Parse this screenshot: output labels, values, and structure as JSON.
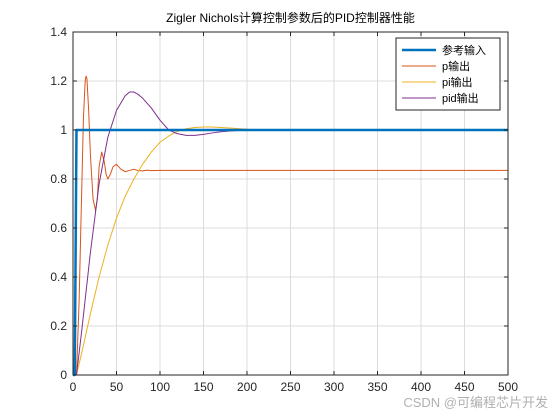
{
  "chart_data": {
    "type": "line",
    "title": "Zigler Nichols计算控制参数后的PID控制器性能",
    "xlabel": "",
    "ylabel": "",
    "xlim": [
      0,
      500
    ],
    "ylim": [
      0,
      1.4
    ],
    "x_ticks": [
      0,
      50,
      100,
      150,
      200,
      250,
      300,
      350,
      400,
      450,
      500
    ],
    "y_ticks": [
      0,
      0.2,
      0.4,
      0.6,
      0.8,
      1,
      1.2,
      1.4
    ],
    "x_tick_labels": [
      "0",
      "50",
      "100",
      "150",
      "200",
      "250",
      "300",
      "350",
      "400",
      "450",
      "500"
    ],
    "y_tick_labels": [
      "0",
      "0.2",
      "0.4",
      "0.6",
      "0.8",
      "1",
      "1.2",
      "1.4"
    ],
    "grid": true,
    "legend_position": "top-right",
    "series": [
      {
        "name": "参考输入",
        "color": "#0072BD",
        "x": [
          0,
          2,
          4,
          500
        ],
        "y": [
          0,
          0,
          1,
          1
        ]
      },
      {
        "name": "p输出",
        "color": "#D95319",
        "x": [
          0,
          4,
          7,
          10,
          12,
          14,
          15,
          16,
          18,
          20,
          23,
          26,
          28,
          30,
          33,
          36,
          38,
          40,
          43,
          46,
          50,
          55,
          60,
          65,
          70,
          75,
          80,
          85,
          90,
          100,
          120,
          150,
          200,
          300,
          400,
          500
        ],
        "y": [
          0,
          0,
          0.3,
          0.75,
          1.05,
          1.2,
          1.22,
          1.21,
          1.08,
          0.9,
          0.72,
          0.67,
          0.72,
          0.85,
          0.91,
          0.87,
          0.82,
          0.8,
          0.82,
          0.85,
          0.86,
          0.84,
          0.83,
          0.835,
          0.84,
          0.834,
          0.833,
          0.836,
          0.834,
          0.835,
          0.835,
          0.835,
          0.835,
          0.835,
          0.835,
          0.835
        ]
      },
      {
        "name": "pi输出",
        "color": "#EDB120",
        "x": [
          0,
          4,
          10,
          20,
          30,
          40,
          50,
          60,
          70,
          80,
          90,
          100,
          110,
          120,
          130,
          140,
          150,
          160,
          170,
          180,
          200,
          220,
          250,
          300,
          400,
          500
        ],
        "y": [
          0,
          0,
          0.09,
          0.25,
          0.4,
          0.53,
          0.64,
          0.73,
          0.8,
          0.86,
          0.91,
          0.95,
          0.975,
          0.995,
          1.005,
          1.01,
          1.012,
          1.012,
          1.01,
          1.008,
          1.003,
          1.0,
          1.0,
          1.0,
          1.0,
          1.0
        ]
      },
      {
        "name": "pid输出",
        "color": "#7E2F8E",
        "x": [
          0,
          4,
          10,
          20,
          30,
          40,
          50,
          60,
          65,
          70,
          75,
          80,
          90,
          100,
          110,
          120,
          130,
          140,
          150,
          160,
          170,
          180,
          200,
          220,
          250,
          300,
          400,
          500
        ],
        "y": [
          0,
          0,
          0.18,
          0.5,
          0.78,
          0.97,
          1.08,
          1.14,
          1.155,
          1.155,
          1.145,
          1.13,
          1.09,
          1.04,
          1.0,
          0.985,
          0.978,
          0.978,
          0.982,
          0.988,
          0.993,
          0.996,
          1.0,
          1.001,
          1.0,
          1.0,
          1.0,
          1.0
        ]
      }
    ]
  },
  "watermark": "CSDN @可编程芯片开发"
}
